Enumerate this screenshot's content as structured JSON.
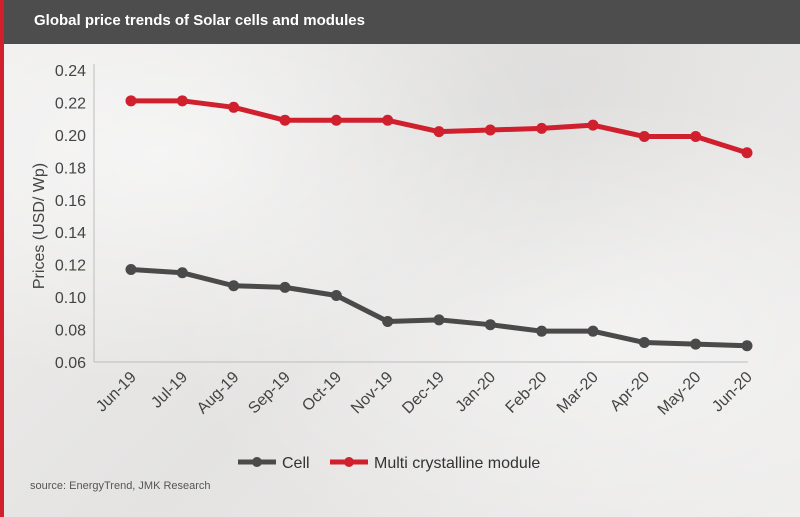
{
  "header": {
    "title": "Global price trends of Solar cells and modules"
  },
  "source": "source: EnergyTrend, JMK Research",
  "colors": {
    "cell": "#4a4a4a",
    "module": "#d0202e",
    "header_bg": "#4d4d4d",
    "accent": "#d0202e"
  },
  "chart_data": {
    "type": "line",
    "title": "Global price trends of Solar cells and modules",
    "xlabel": "",
    "ylabel": "Prices (USD/ Wp)",
    "categories": [
      "Jun-19",
      "Jul-19",
      "Aug-19",
      "Sep-19",
      "Oct-19",
      "Nov-19",
      "Dec-19",
      "Jan-20",
      "Feb-20",
      "Mar-20",
      "Apr-20",
      "May-20",
      "Jun-20"
    ],
    "ylim": [
      0.06,
      0.24
    ],
    "yticks": [
      "0.06",
      "0.08",
      "0.10",
      "0.12",
      "0.14",
      "0.16",
      "0.18",
      "0.20",
      "0.22",
      "0.24"
    ],
    "grid": false,
    "legend": "bottom-center",
    "series": [
      {
        "name": "Cell",
        "values": [
          0.117,
          0.115,
          0.107,
          0.106,
          0.101,
          0.085,
          0.086,
          0.083,
          0.079,
          0.079,
          0.072,
          0.071,
          0.07
        ]
      },
      {
        "name": "Multi crystalline module",
        "values": [
          0.221,
          0.221,
          0.217,
          0.209,
          0.209,
          0.209,
          0.202,
          0.203,
          0.204,
          0.206,
          0.199,
          0.199,
          0.189
        ]
      }
    ]
  }
}
